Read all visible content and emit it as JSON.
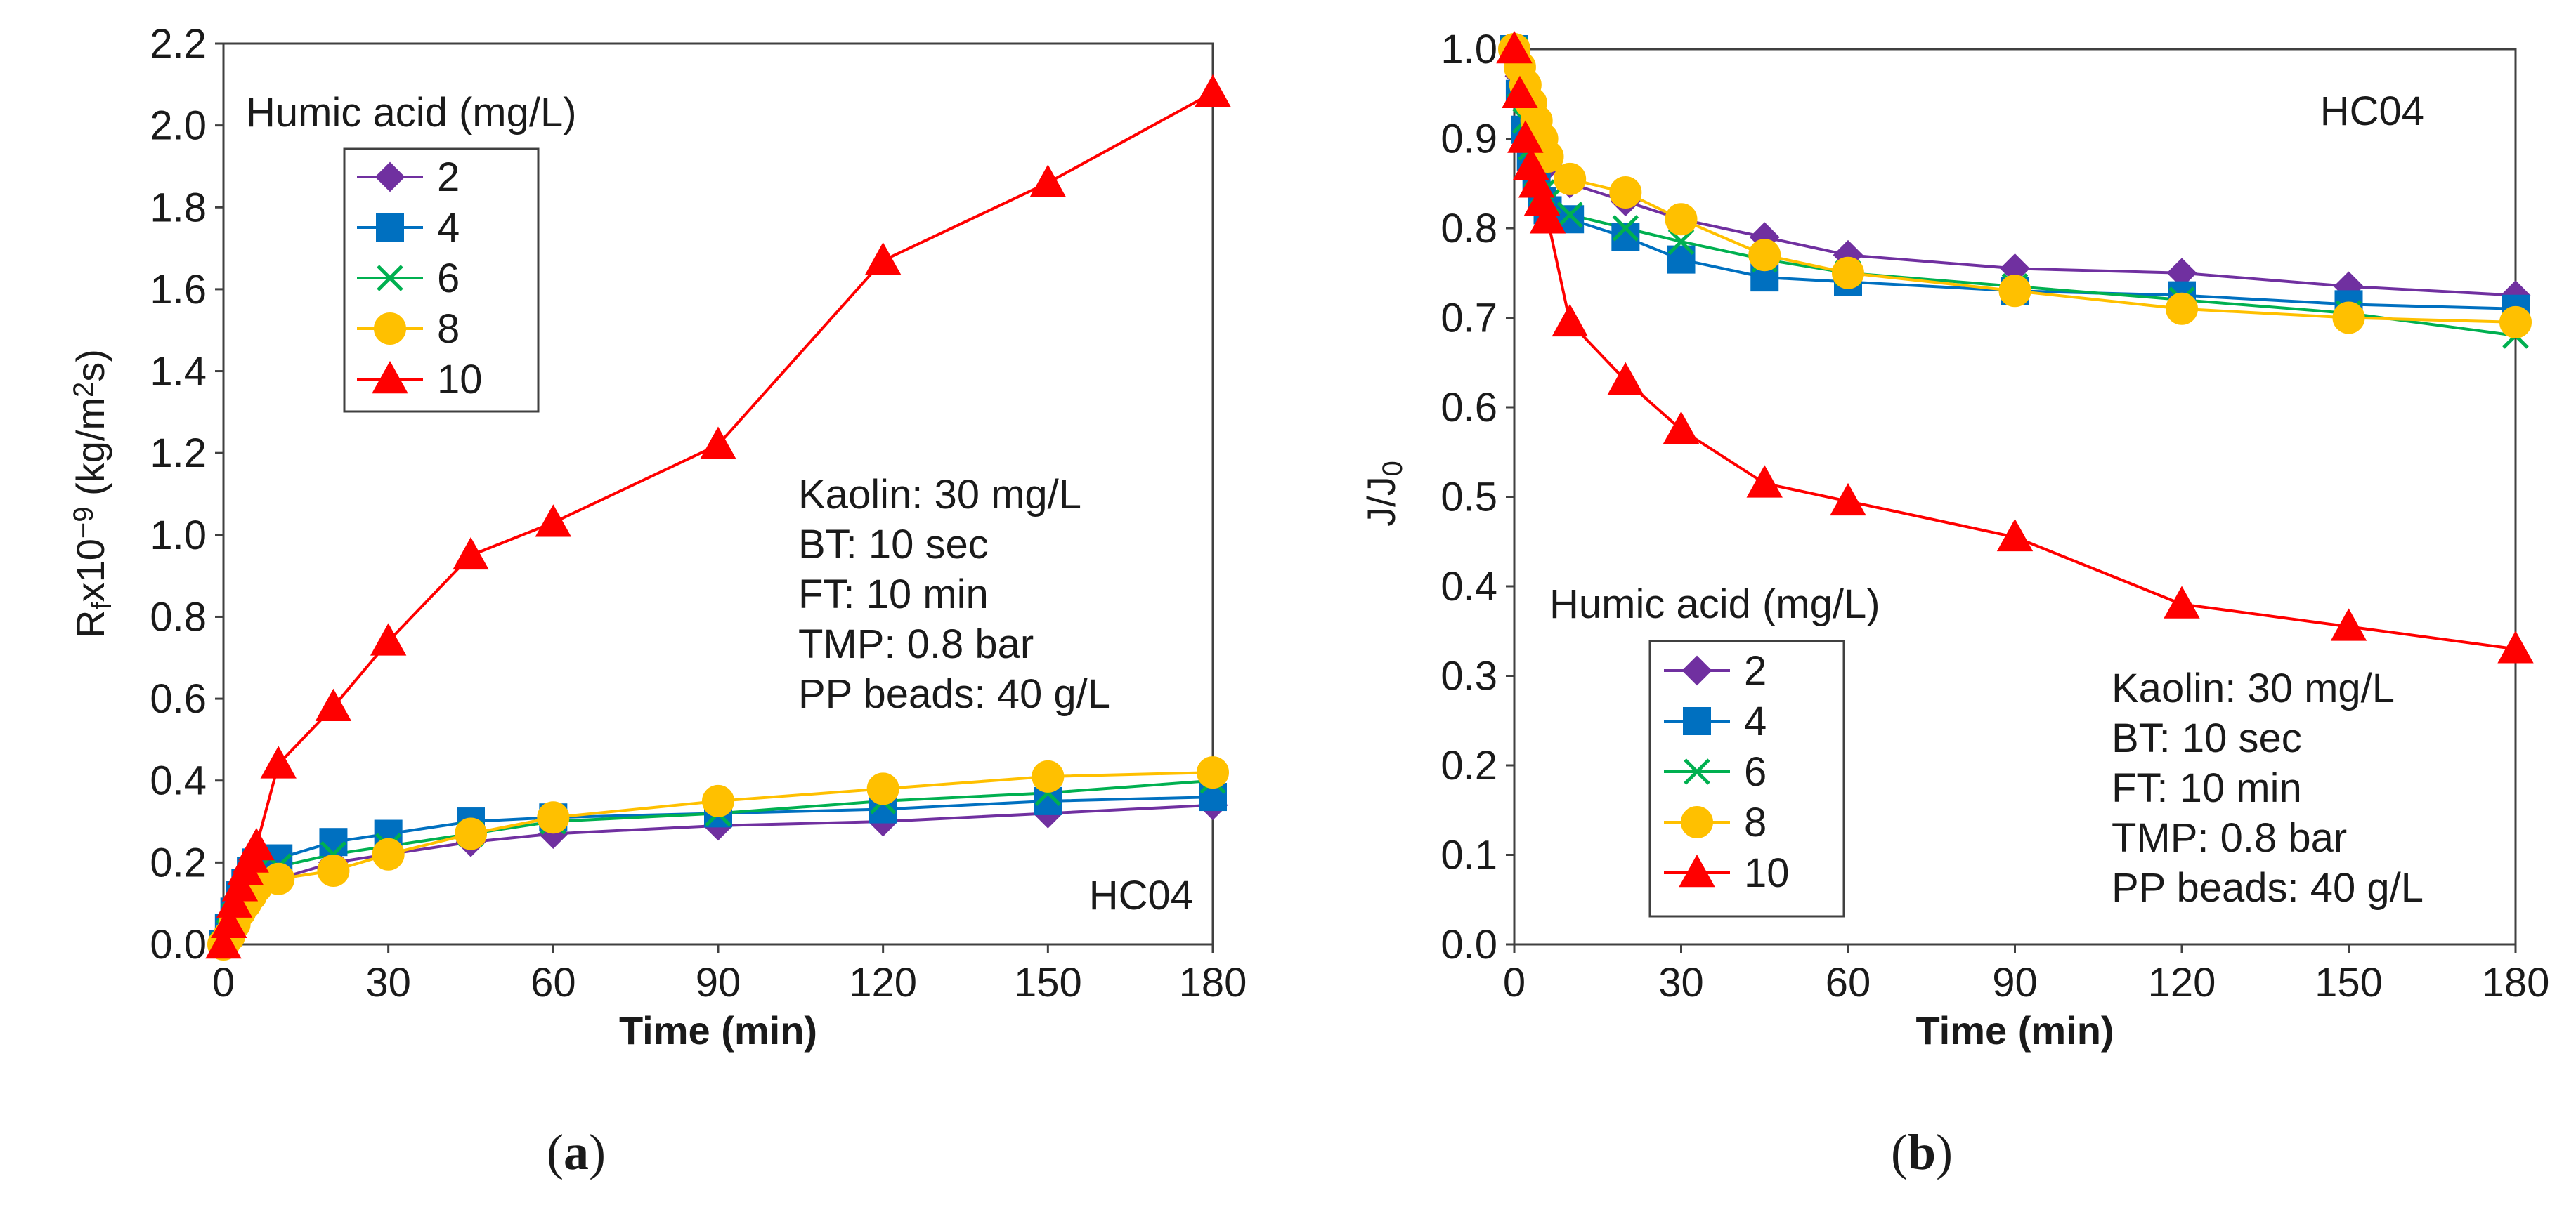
{
  "chart_data": [
    {
      "panel": "(a)",
      "type": "line",
      "title": "",
      "xlabel": "Time (min)",
      "ylabel_parts": [
        "R",
        "f",
        "x10",
        "−9",
        " (kg/m",
        "2",
        "s)"
      ],
      "xlim": [
        0,
        180
      ],
      "ylim": [
        0,
        2.2
      ],
      "xticks": [
        0,
        30,
        60,
        90,
        120,
        150,
        180
      ],
      "xtick_labels": [
        "0",
        "30",
        "60",
        "90",
        "120",
        "150",
        "180"
      ],
      "yticks": [
        0,
        0.2,
        0.4,
        0.6,
        0.8,
        1.0,
        1.2,
        1.4,
        1.6,
        1.8,
        2.0,
        2.2
      ],
      "ytick_labels": [
        "0.0",
        "0.2",
        "0.4",
        "0.6",
        "0.8",
        "1.0",
        "1.2",
        "1.4",
        "1.6",
        "1.8",
        "2.0",
        "2.2"
      ],
      "legend_title": "Humic acid (mg/L)",
      "annotation_lines": [
        "Kaolin: 30 mg/L",
        "BT: 10 sec",
        "FT: 10 min",
        "TMP: 0.8 bar",
        "PP beads: 40 g/L"
      ],
      "sample_label": "HC04",
      "caption_letter": "a",
      "series": [
        {
          "name": "2",
          "marker": "diamond",
          "color": "#7030A0",
          "x": [
            0,
            1,
            2,
            3,
            4,
            5,
            6,
            10,
            20,
            30,
            45,
            60,
            90,
            120,
            150,
            180
          ],
          "y": [
            0,
            0.03,
            0.06,
            0.08,
            0.1,
            0.12,
            0.13,
            0.16,
            0.2,
            0.22,
            0.25,
            0.27,
            0.29,
            0.3,
            0.32,
            0.34
          ]
        },
        {
          "name": "4",
          "marker": "square",
          "color": "#0070C0",
          "x": [
            0,
            1,
            2,
            3,
            4,
            5,
            6,
            10,
            20,
            30,
            45,
            60,
            90,
            120,
            150,
            180
          ],
          "y": [
            0,
            0.04,
            0.08,
            0.12,
            0.15,
            0.18,
            0.2,
            0.21,
            0.25,
            0.27,
            0.3,
            0.31,
            0.32,
            0.33,
            0.35,
            0.36
          ]
        },
        {
          "name": "6",
          "marker": "x",
          "color": "#00B050",
          "x": [
            0,
            1,
            2,
            3,
            4,
            5,
            6,
            10,
            20,
            30,
            45,
            60,
            90,
            120,
            150,
            180
          ],
          "y": [
            0,
            0.03,
            0.07,
            0.1,
            0.13,
            0.16,
            0.18,
            0.19,
            0.22,
            0.24,
            0.27,
            0.3,
            0.32,
            0.35,
            0.37,
            0.4
          ]
        },
        {
          "name": "8",
          "marker": "circle",
          "color": "#FFC000",
          "x": [
            0,
            1,
            2,
            3,
            4,
            5,
            6,
            10,
            20,
            30,
            45,
            60,
            90,
            120,
            150,
            180
          ],
          "y": [
            0,
            0.02,
            0.05,
            0.08,
            0.1,
            0.12,
            0.14,
            0.16,
            0.18,
            0.22,
            0.27,
            0.31,
            0.35,
            0.38,
            0.41,
            0.42
          ]
        },
        {
          "name": "10",
          "marker": "triangle",
          "color": "#FF0000",
          "x": [
            0,
            1,
            2,
            3,
            4,
            5,
            6,
            10,
            20,
            30,
            45,
            60,
            90,
            120,
            150,
            180
          ],
          "y": [
            0,
            0.05,
            0.1,
            0.14,
            0.18,
            0.21,
            0.24,
            0.44,
            0.58,
            0.74,
            0.95,
            1.03,
            1.22,
            1.67,
            1.86,
            2.08
          ]
        }
      ]
    },
    {
      "panel": "(b)",
      "type": "line",
      "title": "",
      "xlabel": "Time (min)",
      "ylabel_parts": [
        "J/J",
        "0"
      ],
      "xlim": [
        0,
        180
      ],
      "ylim": [
        0,
        1.0
      ],
      "xticks": [
        0,
        30,
        60,
        90,
        120,
        150,
        180
      ],
      "xtick_labels": [
        "0",
        "30",
        "60",
        "90",
        "120",
        "150",
        "180"
      ],
      "yticks": [
        0,
        0.1,
        0.2,
        0.3,
        0.4,
        0.5,
        0.6,
        0.7,
        0.8,
        0.9,
        1.0
      ],
      "ytick_labels": [
        "0.0",
        "0.1",
        "0.2",
        "0.3",
        "0.4",
        "0.5",
        "0.6",
        "0.7",
        "0.8",
        "0.9",
        "1.0"
      ],
      "legend_title": "Humic acid (mg/L)",
      "annotation_lines": [
        "Kaolin: 30 mg/L",
        "BT: 10 sec",
        "FT: 10 min",
        "TMP: 0.8 bar",
        "PP beads: 40 g/L"
      ],
      "sample_label": "HC04",
      "caption_letter": "b",
      "series": [
        {
          "name": "2",
          "marker": "diamond",
          "color": "#7030A0",
          "x": [
            0,
            1,
            2,
            3,
            4,
            5,
            6,
            10,
            20,
            30,
            45,
            60,
            90,
            120,
            150,
            180
          ],
          "y": [
            1.0,
            0.97,
            0.94,
            0.92,
            0.9,
            0.88,
            0.87,
            0.85,
            0.83,
            0.81,
            0.79,
            0.77,
            0.755,
            0.75,
            0.735,
            0.725
          ]
        },
        {
          "name": "4",
          "marker": "square",
          "color": "#0070C0",
          "x": [
            0,
            1,
            2,
            3,
            4,
            5,
            6,
            10,
            20,
            30,
            45,
            60,
            90,
            120,
            150,
            180
          ],
          "y": [
            1.0,
            0.95,
            0.91,
            0.88,
            0.85,
            0.83,
            0.82,
            0.81,
            0.79,
            0.765,
            0.745,
            0.74,
            0.73,
            0.725,
            0.715,
            0.71
          ]
        },
        {
          "name": "6",
          "marker": "x",
          "color": "#00B050",
          "x": [
            0,
            1,
            2,
            3,
            4,
            5,
            6,
            10,
            20,
            30,
            45,
            60,
            90,
            120,
            150,
            180
          ],
          "y": [
            1.0,
            0.96,
            0.92,
            0.89,
            0.86,
            0.84,
            0.83,
            0.815,
            0.8,
            0.785,
            0.765,
            0.75,
            0.735,
            0.72,
            0.705,
            0.68
          ]
        },
        {
          "name": "8",
          "marker": "circle",
          "color": "#FFC000",
          "x": [
            0,
            1,
            2,
            3,
            4,
            5,
            6,
            10,
            20,
            30,
            45,
            60,
            90,
            120,
            150,
            180
          ],
          "y": [
            1.0,
            0.98,
            0.96,
            0.94,
            0.92,
            0.9,
            0.88,
            0.855,
            0.84,
            0.81,
            0.77,
            0.75,
            0.73,
            0.71,
            0.7,
            0.695
          ]
        },
        {
          "name": "10",
          "marker": "triangle",
          "color": "#FF0000",
          "x": [
            0,
            1,
            2,
            3,
            4,
            5,
            6,
            10,
            20,
            30,
            45,
            60,
            90,
            120,
            150,
            180
          ],
          "y": [
            1.0,
            0.95,
            0.9,
            0.87,
            0.85,
            0.83,
            0.81,
            0.695,
            0.63,
            0.575,
            0.515,
            0.495,
            0.455,
            0.38,
            0.355,
            0.33
          ]
        }
      ]
    }
  ]
}
